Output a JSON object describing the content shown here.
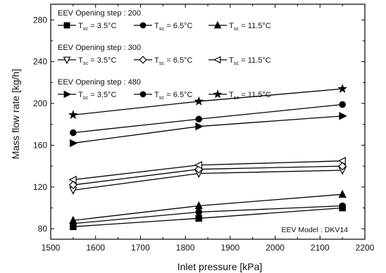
{
  "chart_data": {
    "type": "line",
    "title": "",
    "xlabel": "Inlet pressure [kPa]",
    "ylabel": "Mass flow rate [kg/h]",
    "xlim": [
      1500,
      2200
    ],
    "ylim": [
      70,
      295
    ],
    "xticks": [
      1500,
      1600,
      1700,
      1800,
      1900,
      2000,
      2100,
      2200
    ],
    "yticks": [
      80,
      120,
      160,
      200,
      240,
      280
    ],
    "grid": false,
    "legend_position": "top-left",
    "annotation": "EEV Model : DKV14",
    "x": [
      1550,
      1830,
      2150
    ],
    "legend_groups": [
      {
        "title": "EEV Opening step : 200",
        "series_indices": [
          0,
          1,
          2
        ]
      },
      {
        "title": "EEV Opening step : 300",
        "series_indices": [
          3,
          4,
          5
        ]
      },
      {
        "title": "EEV Opening step : 480",
        "series_indices": [
          6,
          7,
          8
        ]
      }
    ],
    "series": [
      {
        "name": "Tsc = 3.5°C",
        "temp": "3.5°C",
        "marker": "square-filled",
        "values": [
          82,
          90,
          100
        ]
      },
      {
        "name": "Tsc = 6.5°C",
        "temp": "6.5°C",
        "marker": "circle-filled",
        "values": [
          85,
          96,
          102
        ]
      },
      {
        "name": "Tsc = 11.5°C",
        "temp": "11.5°C",
        "marker": "triangle-up-filled",
        "values": [
          88,
          102,
          113
        ]
      },
      {
        "name": "Tsc = 3.5°C",
        "temp": "3.5°C",
        "marker": "triangle-down-open",
        "values": [
          117,
          133,
          136
        ]
      },
      {
        "name": "Tsc = 6.5°C",
        "temp": "6.5°C",
        "marker": "diamond-open",
        "values": [
          122,
          137,
          140
        ]
      },
      {
        "name": "Tsc = 11.5°C",
        "temp": "11.5°C",
        "marker": "triangle-left-open",
        "values": [
          127,
          141,
          145
        ]
      },
      {
        "name": "Tsc = 3.5°C",
        "temp": "3.5°C",
        "marker": "triangle-right-filled",
        "values": [
          162,
          178,
          188
        ]
      },
      {
        "name": "Tsc = 6.5°C",
        "temp": "6.5°C",
        "marker": "circle-filled",
        "values": [
          172,
          185,
          199
        ]
      },
      {
        "name": "Tsc = 11.5°C",
        "temp": "11.5°C",
        "marker": "star-filled",
        "values": [
          189,
          202,
          214
        ]
      }
    ]
  }
}
